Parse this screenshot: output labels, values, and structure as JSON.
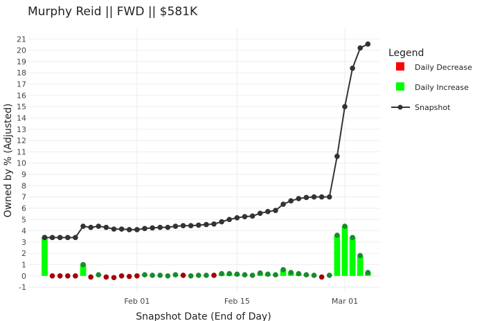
{
  "chart_data": {
    "type": "bar+line",
    "title": "Murphy Reid || FWD || $581K",
    "xlabel": "Snapshot Date (End of Day)",
    "ylabel": "Owned by % (Adjusted)",
    "ylim": [
      -1.3,
      22
    ],
    "y_ticks": [
      -1,
      0,
      1,
      2,
      3,
      4,
      5,
      6,
      7,
      8,
      9,
      10,
      11,
      12,
      13,
      14,
      15,
      16,
      17,
      18,
      19,
      20,
      21
    ],
    "x_range": [
      -2.2,
      43.5
    ],
    "x_ticks": [
      {
        "day": 12,
        "label": "Feb 01"
      },
      {
        "day": 25,
        "label": "Feb 15"
      },
      {
        "day": 39,
        "label": "Mar 01"
      }
    ],
    "legend": {
      "title": "Legend",
      "placement": "right",
      "entries": [
        {
          "label": "Daily Decrease",
          "color": "#ff0000",
          "kind": "square"
        },
        {
          "label": "Daily Increase",
          "color": "#00ff00",
          "kind": "square"
        },
        {
          "label": "Snapshot",
          "color": "#333333",
          "kind": "line"
        }
      ]
    },
    "colors": {
      "increase_bar": "#00ff00",
      "increase_marker": "#1a8a2e",
      "decrease_marker": "#a50000",
      "snapshot_line": "#333333",
      "grid": "#eeeeee"
    },
    "series": [
      {
        "name": "Snapshot",
        "days": [
          0,
          1,
          2,
          3,
          4,
          5,
          6,
          7,
          8,
          9,
          10,
          11,
          12,
          13,
          14,
          15,
          16,
          17,
          18,
          19,
          20,
          21,
          22,
          23,
          24,
          25,
          26,
          27,
          28,
          29,
          30,
          31,
          32,
          33,
          34,
          35,
          36,
          37,
          38,
          39,
          40,
          41
        ],
        "values": [
          3.4,
          3.4,
          3.4,
          3.4,
          3.4,
          4.4,
          4.3,
          4.4,
          4.3,
          4.15,
          4.15,
          4.1,
          4.1,
          4.2,
          4.25,
          4.3,
          4.3,
          4.4,
          4.45,
          4.45,
          4.5,
          4.55,
          4.6,
          4.8,
          5.0,
          5.15,
          5.25,
          5.3,
          5.55,
          5.7,
          5.8,
          6.35,
          6.65,
          6.85,
          6.95,
          7.0,
          7.0,
          7.0,
          10.6,
          15.0,
          18.4,
          20.2
        ]
      },
      {
        "name": "Daily Change",
        "days": [
          0,
          1,
          2,
          3,
          4,
          5,
          6,
          7,
          8,
          9,
          10,
          11,
          12,
          13,
          14,
          15,
          16,
          17,
          18,
          19,
          20,
          21,
          22,
          23,
          24,
          25,
          26,
          27,
          28,
          29,
          30,
          31,
          32,
          33,
          34,
          35,
          36,
          37,
          38,
          39,
          40,
          41,
          42
        ],
        "values": [
          3.4,
          0,
          0,
          0,
          0,
          1.0,
          -0.1,
          0.1,
          -0.1,
          -0.15,
          0,
          -0.05,
          0,
          0.1,
          0.05,
          0.05,
          0,
          0.1,
          0.05,
          0,
          0.05,
          0.05,
          0.05,
          0.2,
          0.2,
          0.15,
          0.1,
          0.05,
          0.25,
          0.15,
          0.1,
          0.55,
          0.3,
          0.2,
          0.1,
          0.05,
          -0.1,
          0.05,
          3.6,
          4.4,
          3.4,
          1.8,
          0.3
        ],
        "marker": [
          "inc",
          "dec",
          "dec",
          "dec",
          "dec",
          "inc",
          "dec",
          "inc",
          "dec",
          "dec",
          "dec",
          "dec",
          "dec",
          "inc",
          "inc",
          "inc",
          "inc",
          "inc",
          "dec",
          "inc",
          "inc",
          "inc",
          "dec",
          "inc",
          "inc",
          "inc",
          "inc",
          "inc",
          "inc",
          "inc",
          "inc",
          "inc",
          "inc",
          "inc",
          "inc",
          "inc",
          "dec",
          "inc",
          "inc",
          "inc",
          "inc",
          "inc",
          "inc"
        ]
      }
    ],
    "snapshot_extra_point": {
      "day": 42,
      "value": 20.55
    }
  }
}
